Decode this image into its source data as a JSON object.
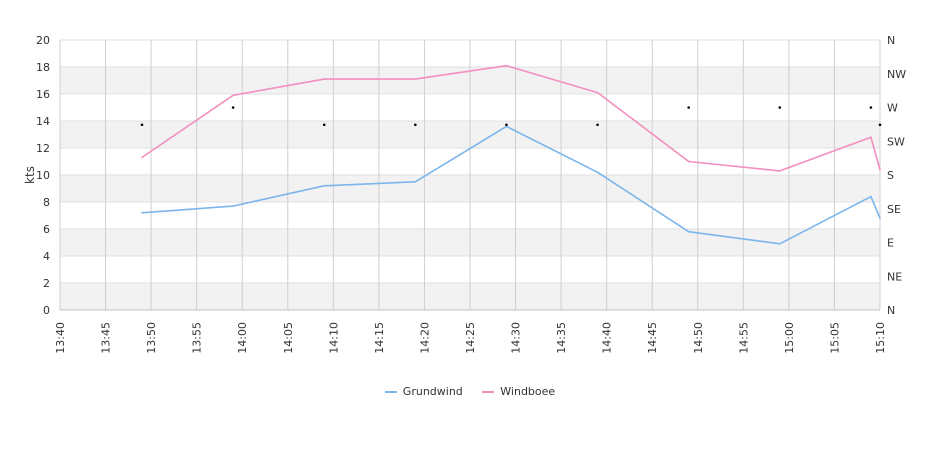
{
  "chart_data": {
    "type": "line",
    "title": "",
    "xlabel": "",
    "ylabel": "kts",
    "ylim": [
      0,
      20
    ],
    "yticks": [
      "0",
      "2",
      "4",
      "6",
      "8",
      "10",
      "12",
      "14",
      "16",
      "18",
      "20"
    ],
    "x_ticks": [
      "13:40",
      "13:45",
      "13:50",
      "13:55",
      "14:00",
      "14:05",
      "14:10",
      "14:15",
      "14:20",
      "14:25",
      "14:30",
      "14:35",
      "14:40",
      "14:45",
      "14:50",
      "14:55",
      "15:00",
      "15:05",
      "15:10"
    ],
    "x": [
      "13:49",
      "13:59",
      "14:09",
      "14:19",
      "14:29",
      "14:39",
      "14:49",
      "14:59",
      "15:09",
      "15:10"
    ],
    "series": [
      {
        "name": "Grundwind",
        "color": "#7cb5ec",
        "values": [
          7.2,
          7.7,
          9.2,
          9.5,
          13.6,
          10.2,
          5.8,
          4.9,
          8.4,
          6.8
        ]
      },
      {
        "name": "Windboee",
        "color": "#f28fbf",
        "values": [
          11.3,
          15.9,
          17.1,
          17.1,
          18.1,
          16.1,
          11.0,
          10.3,
          12.8,
          10.4
        ]
      }
    ],
    "direction_axis": {
      "labels": [
        "N",
        "NE",
        "E",
        "SE",
        "S",
        "SW",
        "W",
        "NW",
        "N"
      ],
      "range": [
        0,
        360
      ]
    },
    "direction_points": [
      {
        "x": "13:49",
        "dir": 247
      },
      {
        "x": "13:59",
        "dir": 270
      },
      {
        "x": "14:09",
        "dir": 247
      },
      {
        "x": "14:19",
        "dir": 247
      },
      {
        "x": "14:29",
        "dir": 247
      },
      {
        "x": "14:39",
        "dir": 247
      },
      {
        "x": "14:49",
        "dir": 270
      },
      {
        "x": "14:59",
        "dir": 270
      },
      {
        "x": "15:09",
        "dir": 270
      },
      {
        "x": "15:10",
        "dir": 247
      }
    ],
    "grid": true,
    "legend_position": "bottom-center"
  }
}
